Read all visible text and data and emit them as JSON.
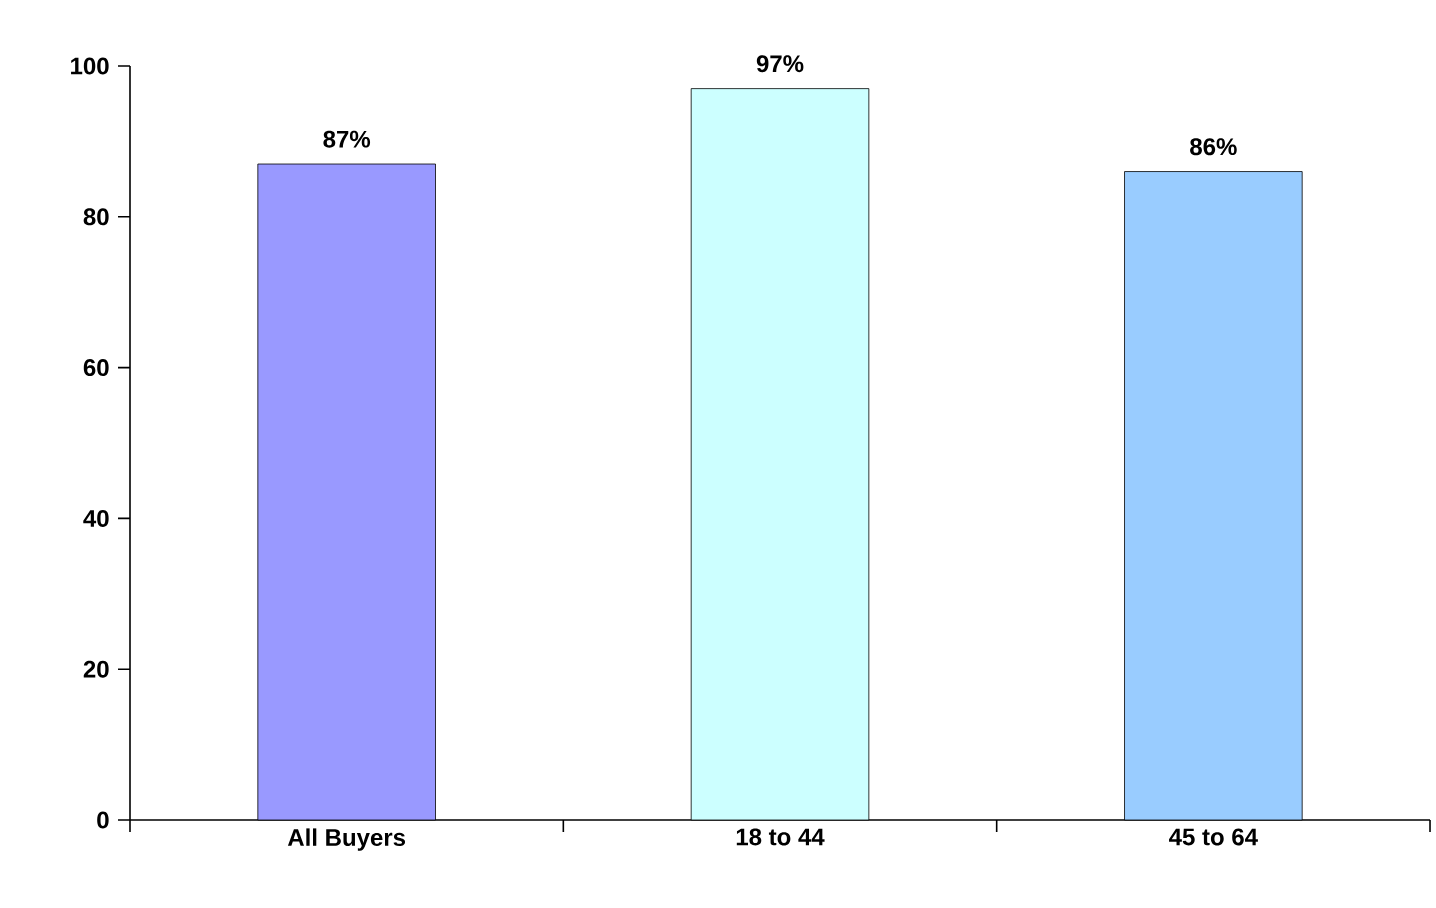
{
  "chart_data": {
    "type": "bar",
    "categories": [
      "All Buyers",
      "18 to 44",
      "45 to 64"
    ],
    "values": [
      87,
      97,
      86
    ],
    "colors": [
      "#9999ff",
      "#ccffff",
      "#99ccff"
    ],
    "value_labels": [
      "87%",
      "97%",
      "86%"
    ],
    "ylim": [
      0,
      100
    ],
    "yticks": [
      0,
      20,
      40,
      60,
      80,
      100
    ]
  }
}
